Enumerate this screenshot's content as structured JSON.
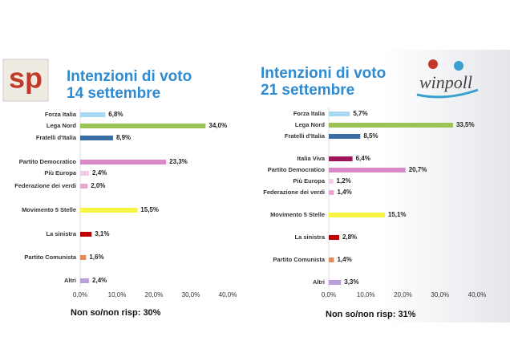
{
  "logos": {
    "left": "sp",
    "right": "winpoll"
  },
  "chart_data": [
    {
      "type": "bar",
      "orientation": "horizontal",
      "title": "Intenzioni di voto",
      "subtitle": "14 settembre",
      "categories": [
        "Forza Italia",
        "Lega Nord",
        "Fratelli d'Italia",
        "Partito Democratico",
        "Più Europa",
        "Federazione dei verdi",
        "Movimento 5 Stelle",
        "La sinistra",
        "Partito Comunista",
        "Altri"
      ],
      "values": [
        6.8,
        34.0,
        8.9,
        23.3,
        2.4,
        2.0,
        15.5,
        3.1,
        1.6,
        2.4
      ],
      "value_labels": [
        "6,8%",
        "34,0%",
        "8,9%",
        "23,3%",
        "2,4%",
        "2,0%",
        "15,5%",
        "3,1%",
        "1,6%",
        "2,4%"
      ],
      "colors": [
        "#a9d8f5",
        "#9bc454",
        "#3a6ea5",
        "#d98ac6",
        "#f4cce3",
        "#e6a8cc",
        "#f5f542",
        "#c00000",
        "#e38a5b",
        "#b9a0d8"
      ],
      "xlim": [
        0,
        40
      ],
      "xticks": [
        {
          "value": 0,
          "label": "0,0%"
        },
        {
          "value": 10,
          "label": "10,0%"
        },
        {
          "value": 20,
          "label": "20,0%"
        },
        {
          "value": 30,
          "label": "30,0%"
        },
        {
          "value": 40,
          "label": "40,0%"
        }
      ],
      "note": "Non so/non risp: 30%"
    },
    {
      "type": "bar",
      "orientation": "horizontal",
      "title": "Intenzioni di voto",
      "subtitle": "21 settembre",
      "categories": [
        "Forza Italia",
        "Lega Nord",
        "Fratelli d'Italia",
        "Italia Viva",
        "Partito Democratico",
        "Più Europa",
        "Federazione dei verdi",
        "Movimento 5 Stelle",
        "La sinistra",
        "Partito Comunista",
        "Altri"
      ],
      "values": [
        5.7,
        33.5,
        8.5,
        6.4,
        20.7,
        1.2,
        1.4,
        15.1,
        2.8,
        1.4,
        3.3
      ],
      "value_labels": [
        "5,7%",
        "33,5%",
        "8,5%",
        "6,4%",
        "20,7%",
        "1,2%",
        "1,4%",
        "15,1%",
        "2,8%",
        "1,4%",
        "3,3%"
      ],
      "colors": [
        "#a9d8f5",
        "#9bc454",
        "#3a6ea5",
        "#a0145a",
        "#d98ac6",
        "#f4cce3",
        "#e6a8cc",
        "#f5f542",
        "#c00000",
        "#e38a5b",
        "#b9a0d8"
      ],
      "xlim": [
        0,
        40
      ],
      "xticks": [
        {
          "value": 0,
          "label": "0,0%"
        },
        {
          "value": 10,
          "label": "10,0%"
        },
        {
          "value": 20,
          "label": "20,0%"
        },
        {
          "value": 30,
          "label": "30,0%"
        },
        {
          "value": 40,
          "label": "40,0%"
        }
      ],
      "note": "Non so/non risp: 31%"
    }
  ]
}
